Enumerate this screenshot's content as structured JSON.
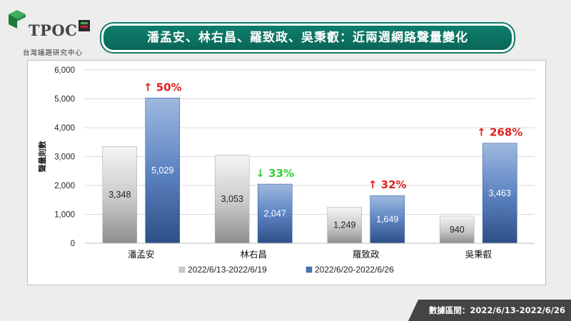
{
  "brand": {
    "logo_text": "TPOC",
    "logo_sub": "台灣議題研究中心"
  },
  "chart_data": {
    "type": "bar",
    "title": "潘孟安、林右昌、羅致政、吳秉叡：近兩週網路聲量變化",
    "ylabel": "聲量則數",
    "ylim": [
      0,
      6000
    ],
    "yticks": [
      "6,000",
      "5,000",
      "4,000",
      "3,000",
      "2,000",
      "1,000",
      "0"
    ],
    "categories": [
      "潘孟安",
      "林右昌",
      "羅致政",
      "吳秉叡"
    ],
    "series": [
      {
        "name": "2022/6/13-2022/6/19",
        "values": [
          3348,
          3053,
          1249,
          940
        ],
        "labels": [
          "3,348",
          "3,053",
          "1,249",
          "940"
        ]
      },
      {
        "name": "2022/6/20-2022/6/26",
        "values": [
          5029,
          2047,
          1649,
          3463
        ],
        "labels": [
          "5,029",
          "2,047",
          "1,649",
          "3,463"
        ]
      }
    ],
    "changes": [
      {
        "text": "↑ 50%",
        "direction": "up",
        "color": "#e02020"
      },
      {
        "text": "↓ 33%",
        "direction": "down",
        "color": "#33cc33"
      },
      {
        "text": "↑ 32%",
        "direction": "up",
        "color": "#e02020"
      },
      {
        "text": "↑ 268%",
        "direction": "up",
        "color": "#e02020"
      }
    ],
    "legend_position": "bottom",
    "grid": true
  },
  "footer": {
    "text": "數據區間：2022/6/13-2022/6/26"
  }
}
